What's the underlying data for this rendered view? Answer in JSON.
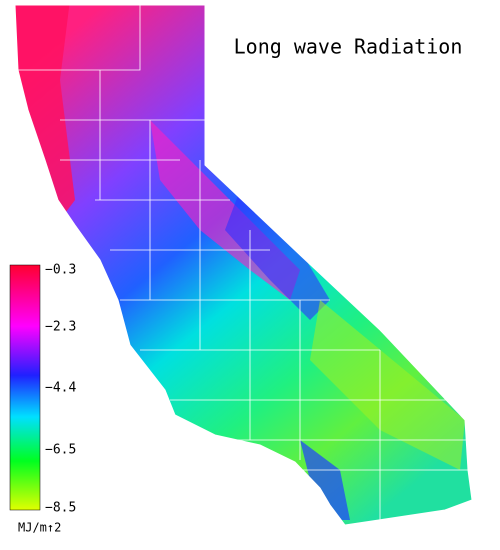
{
  "title": "Long wave Radiation",
  "legend": {
    "labels": [
      "−0.3",
      "−2.3",
      "−4.4",
      "−6.5",
      "−8.5"
    ],
    "unit": "MJ/m↑2"
  }
}
